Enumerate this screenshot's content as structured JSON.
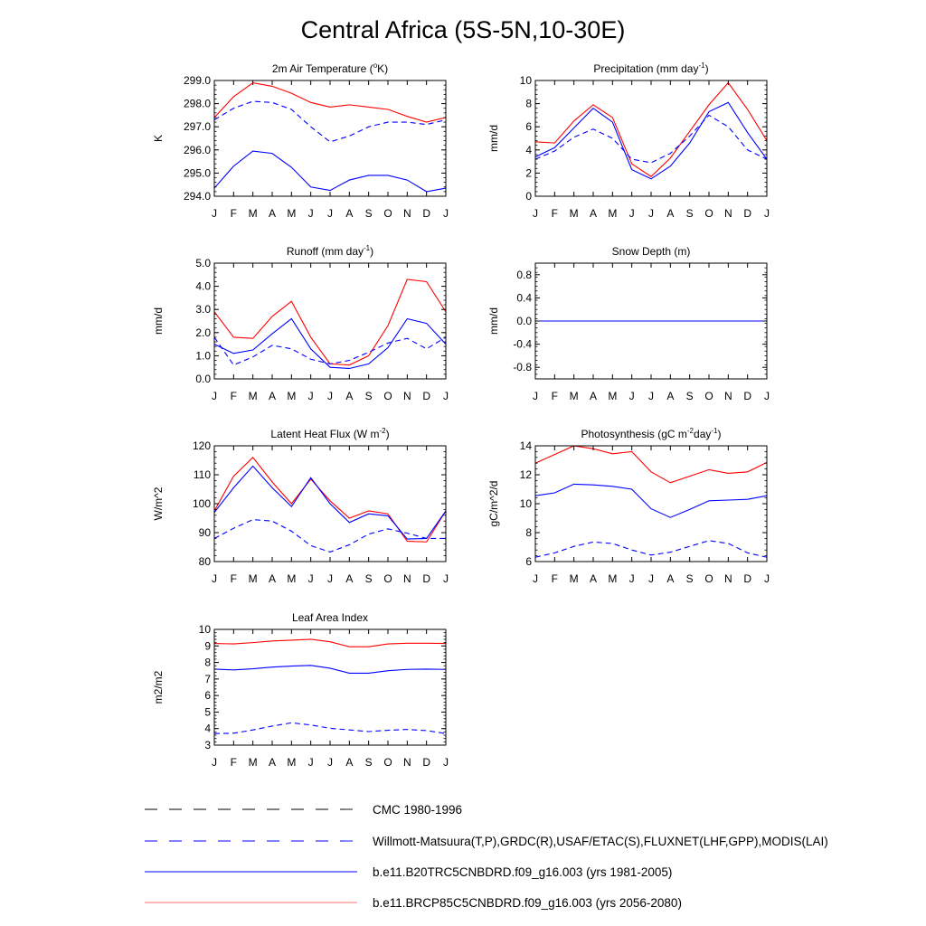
{
  "title": "Central Africa (5S-5N,10-30E)",
  "colors": {
    "model_hist": "#0000ff",
    "model_future": "#ff0000",
    "obs": "#0000ff",
    "cmc": "#000000"
  },
  "months": [
    "J",
    "F",
    "M",
    "A",
    "M",
    "J",
    "J",
    "A",
    "S",
    "O",
    "N",
    "D",
    "J"
  ],
  "legend": [
    {
      "label": "CMC 1980-1996",
      "color": "#000000",
      "dash": true
    },
    {
      "label": "Willmott-Matsuura(T,P),GRDC(R),USAF/ETAC(S),FLUXNET(LHF,GPP),MODIS(LAI)",
      "color": "#0000ff",
      "dash": true
    },
    {
      "label": "b.e11.B20TRC5CNBDRD.f09_g16.003 (yrs 1981-2005)",
      "color": "#0000ff",
      "dash": false
    },
    {
      "label": "b.e11.BRCP85C5CNBDRD.f09_g16.003 (yrs 2056-2080)",
      "color": "#ff0000",
      "dash": false
    }
  ],
  "chart_data": [
    {
      "type": "line",
      "title_main": "2m Air Temperature (",
      "title_sup": "o",
      "title_end": "K)",
      "ylabel": "K",
      "ylim": [
        294.0,
        299.0
      ],
      "yticks": [
        294.0,
        295.0,
        296.0,
        297.0,
        298.0,
        299.0
      ],
      "ytick_labels": [
        "294.0",
        "295.0",
        "296.0",
        "297.0",
        "298.0",
        "299.0"
      ],
      "x": [
        "J",
        "F",
        "M",
        "A",
        "M",
        "J",
        "J",
        "A",
        "S",
        "O",
        "N",
        "D",
        "J"
      ],
      "series": [
        {
          "color": "#ff0000",
          "dash": false,
          "values": [
            297.4,
            298.3,
            298.9,
            298.75,
            298.45,
            298.05,
            297.85,
            297.95,
            297.85,
            297.75,
            297.45,
            297.2,
            297.4
          ]
        },
        {
          "color": "#0000ff",
          "dash": false,
          "values": [
            294.35,
            295.3,
            295.95,
            295.85,
            295.25,
            294.4,
            294.25,
            294.7,
            294.9,
            294.9,
            294.7,
            294.2,
            294.35
          ]
        },
        {
          "color": "#0000ff",
          "dash": true,
          "values": [
            297.3,
            297.8,
            298.1,
            298.05,
            297.75,
            297.0,
            296.35,
            296.6,
            297.0,
            297.2,
            297.2,
            297.1,
            297.3
          ]
        }
      ]
    },
    {
      "type": "line",
      "title_main": "Precipitation (mm day",
      "title_sup": "-1",
      "title_end": ")",
      "ylabel": "mm/d",
      "ylim": [
        0,
        10
      ],
      "yticks": [
        0,
        2,
        4,
        6,
        8,
        10
      ],
      "ytick_labels": [
        "0",
        "2",
        "4",
        "6",
        "8",
        "10"
      ],
      "x": [
        "J",
        "F",
        "M",
        "A",
        "M",
        "J",
        "J",
        "A",
        "S",
        "O",
        "N",
        "D",
        "J"
      ],
      "series": [
        {
          "color": "#ff0000",
          "dash": false,
          "values": [
            4.7,
            4.6,
            6.5,
            7.9,
            6.8,
            2.8,
            1.7,
            3.3,
            5.6,
            7.9,
            9.8,
            7.5,
            4.8
          ]
        },
        {
          "color": "#0000ff",
          "dash": false,
          "values": [
            3.4,
            4.2,
            5.9,
            7.6,
            6.4,
            2.3,
            1.5,
            2.6,
            4.6,
            7.3,
            8.1,
            5.5,
            3.2
          ]
        },
        {
          "color": "#0000ff",
          "dash": true,
          "values": [
            3.2,
            3.9,
            5.1,
            5.8,
            5.0,
            3.2,
            2.9,
            3.7,
            5.2,
            7.0,
            6.0,
            4.0,
            3.2
          ]
        }
      ]
    },
    {
      "type": "line",
      "title_main": "Runoff (mm day",
      "title_sup": "-1",
      "title_end": ")",
      "ylabel": "mm/d",
      "ylim": [
        0,
        5
      ],
      "yticks": [
        0,
        1,
        2,
        3,
        4,
        5
      ],
      "ytick_labels": [
        "0.0",
        "1.0",
        "2.0",
        "3.0",
        "4.0",
        "5.0"
      ],
      "x": [
        "J",
        "F",
        "M",
        "A",
        "M",
        "J",
        "J",
        "A",
        "S",
        "O",
        "N",
        "D",
        "J"
      ],
      "series": [
        {
          "color": "#ff0000",
          "dash": false,
          "values": [
            2.9,
            1.8,
            1.75,
            2.7,
            3.35,
            1.8,
            0.65,
            0.6,
            1.0,
            2.3,
            4.3,
            4.2,
            2.9
          ]
        },
        {
          "color": "#0000ff",
          "dash": false,
          "values": [
            1.5,
            1.1,
            1.25,
            1.95,
            2.6,
            1.3,
            0.5,
            0.45,
            0.65,
            1.35,
            2.6,
            2.4,
            1.5
          ]
        },
        {
          "color": "#0000ff",
          "dash": true,
          "values": [
            1.8,
            0.6,
            0.95,
            1.45,
            1.3,
            0.85,
            0.65,
            0.8,
            1.15,
            1.55,
            1.75,
            1.3,
            1.8
          ]
        }
      ]
    },
    {
      "type": "line",
      "title_main": "Snow Depth (m)",
      "title_sup": "",
      "title_end": "",
      "ylabel": "mm/d",
      "ylim": [
        -1.0,
        1.0
      ],
      "yticks": [
        -0.8,
        -0.4,
        0.0,
        0.4,
        0.8
      ],
      "ytick_labels": [
        "-0.8",
        "-0.4",
        "0.0",
        "0.4",
        "0.8"
      ],
      "x": [
        "J",
        "F",
        "M",
        "A",
        "M",
        "J",
        "J",
        "A",
        "S",
        "O",
        "N",
        "D",
        "J"
      ],
      "series": [
        {
          "color": "#ff0000",
          "dash": false,
          "values": [
            0,
            0,
            0,
            0,
            0,
            0,
            0,
            0,
            0,
            0,
            0,
            0,
            0
          ]
        },
        {
          "color": "#0000ff",
          "dash": false,
          "values": [
            0,
            0,
            0,
            0,
            0,
            0,
            0,
            0,
            0,
            0,
            0,
            0,
            0
          ]
        },
        {
          "color": "#0000ff",
          "dash": true,
          "values": [
            0,
            0,
            0,
            0,
            0,
            0,
            0,
            0,
            0,
            0,
            0,
            0,
            0
          ]
        }
      ]
    },
    {
      "type": "line",
      "title_main": "Latent Heat Flux (W m",
      "title_sup": "-2",
      "title_end": ")",
      "ylabel": "W/m^2",
      "ylim": [
        80,
        120
      ],
      "yticks": [
        80,
        90,
        100,
        110,
        120
      ],
      "ytick_labels": [
        "80",
        "90",
        "100",
        "110",
        "120"
      ],
      "x": [
        "J",
        "F",
        "M",
        "A",
        "M",
        "J",
        "J",
        "A",
        "S",
        "O",
        "N",
        "D",
        "J"
      ],
      "series": [
        {
          "color": "#ff0000",
          "dash": false,
          "values": [
            97.5,
            109.5,
            116.0,
            107.5,
            100.0,
            108.5,
            101.0,
            95.0,
            97.5,
            96.5,
            87.0,
            86.8,
            97.5
          ]
        },
        {
          "color": "#0000ff",
          "dash": false,
          "values": [
            97.0,
            105.5,
            113.0,
            105.5,
            99.0,
            109.0,
            100.0,
            93.5,
            96.5,
            95.8,
            87.8,
            88.0,
            97.5
          ]
        },
        {
          "color": "#0000ff",
          "dash": true,
          "values": [
            88.0,
            91.5,
            94.5,
            94.0,
            90.5,
            85.5,
            83.3,
            85.8,
            89.5,
            91.3,
            89.8,
            88.0,
            88.0
          ]
        }
      ]
    },
    {
      "type": "line",
      "title_main": "Photosynthesis (gC m",
      "title_sup": "-2",
      "title_mid": "day",
      "title_sup2": "-1",
      "title_end": ")",
      "ylabel": "gC/m^2/d",
      "ylim": [
        6,
        14
      ],
      "yticks": [
        6,
        8,
        10,
        12,
        14
      ],
      "ytick_labels": [
        "6",
        "8",
        "10",
        "12",
        "14"
      ],
      "x": [
        "J",
        "F",
        "M",
        "A",
        "M",
        "J",
        "J",
        "A",
        "S",
        "O",
        "N",
        "D",
        "J"
      ],
      "series": [
        {
          "color": "#ff0000",
          "dash": false,
          "values": [
            12.8,
            13.4,
            14.0,
            13.8,
            13.45,
            13.6,
            12.2,
            11.45,
            11.9,
            12.35,
            12.1,
            12.2,
            12.85
          ]
        },
        {
          "color": "#0000ff",
          "dash": false,
          "values": [
            10.55,
            10.75,
            11.35,
            11.3,
            11.2,
            11.0,
            9.65,
            9.05,
            9.6,
            10.2,
            10.25,
            10.3,
            10.55
          ]
        },
        {
          "color": "#0000ff",
          "dash": true,
          "values": [
            6.3,
            6.6,
            7.05,
            7.35,
            7.25,
            6.8,
            6.45,
            6.65,
            7.05,
            7.45,
            7.25,
            6.6,
            6.3
          ]
        }
      ]
    },
    {
      "type": "line",
      "title_main": "Leaf Area Index",
      "title_sup": "",
      "title_end": "",
      "ylabel": "m2/m2",
      "ylim": [
        3,
        10
      ],
      "yticks": [
        3,
        4,
        5,
        6,
        7,
        8,
        9,
        10
      ],
      "ytick_labels": [
        "3",
        "4",
        "5",
        "6",
        "7",
        "8",
        "9",
        "10"
      ],
      "x": [
        "J",
        "F",
        "M",
        "A",
        "M",
        "J",
        "J",
        "A",
        "S",
        "O",
        "N",
        "D",
        "J"
      ],
      "series": [
        {
          "color": "#ff0000",
          "dash": false,
          "values": [
            9.15,
            9.12,
            9.2,
            9.3,
            9.35,
            9.4,
            9.25,
            8.95,
            8.95,
            9.12,
            9.16,
            9.16,
            9.15
          ]
        },
        {
          "color": "#0000ff",
          "dash": false,
          "values": [
            7.6,
            7.55,
            7.62,
            7.72,
            7.78,
            7.82,
            7.65,
            7.35,
            7.35,
            7.5,
            7.58,
            7.6,
            7.58
          ]
        },
        {
          "color": "#0000ff",
          "dash": true,
          "values": [
            3.7,
            3.72,
            3.92,
            4.15,
            4.35,
            4.22,
            4.02,
            3.92,
            3.82,
            3.9,
            3.95,
            3.88,
            3.7
          ]
        }
      ]
    }
  ]
}
